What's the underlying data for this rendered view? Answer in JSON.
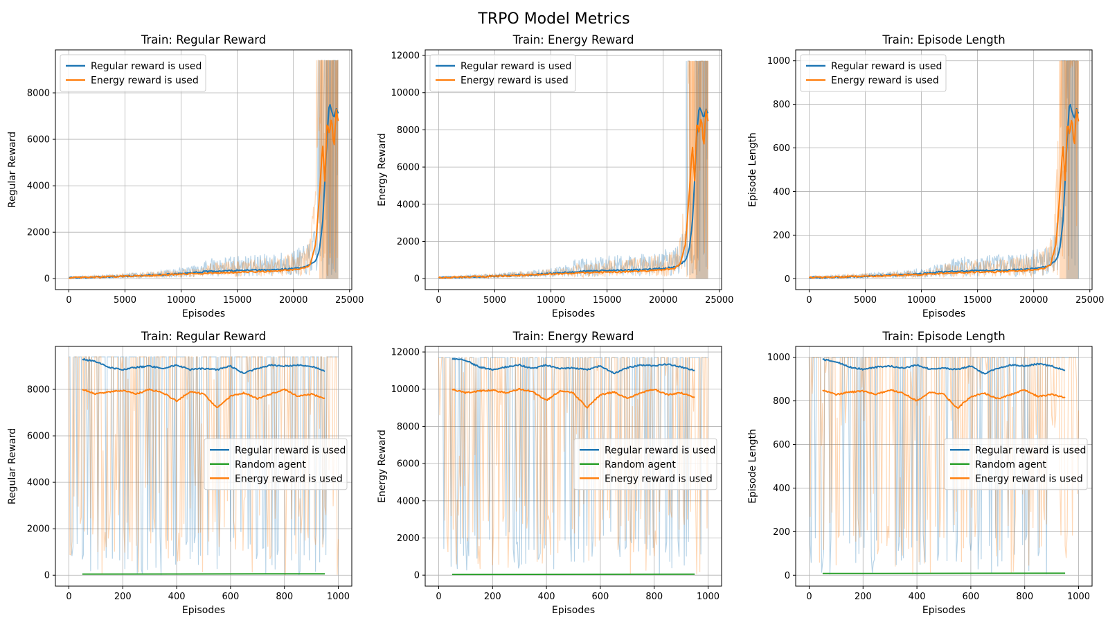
{
  "figure": {
    "title": "TRPO Model Metrics"
  },
  "colors": {
    "regular": "#1f77b4",
    "energy": "#ff7f0e",
    "random": "#2ca02c",
    "grid": "#b0b0b0"
  },
  "chart_data": [
    {
      "type": "line",
      "title": "Train: Regular Reward",
      "xlabel": "Episodes",
      "ylabel": "Regular Reward",
      "xlim": [
        -1200,
        25200
      ],
      "ylim": [
        -470,
        9850
      ],
      "xticks": [
        0,
        5000,
        10000,
        15000,
        20000,
        25000
      ],
      "yticks": [
        0,
        2000,
        4000,
        6000,
        8000
      ],
      "legend_position": "upper-left",
      "grid": true,
      "kind": "train",
      "ymax": 9400,
      "series": [
        {
          "name": "Regular reward is used",
          "key": "regular",
          "x": [
            0,
            2000,
            4000,
            6000,
            8000,
            10000,
            12000,
            14000,
            16000,
            18000,
            20000,
            21000,
            21500,
            22000,
            22300,
            22600,
            22800,
            23000,
            23200,
            23400,
            23600,
            23800,
            24000
          ],
          "values": [
            40,
            60,
            90,
            120,
            160,
            220,
            300,
            340,
            360,
            380,
            440,
            500,
            600,
            800,
            1200,
            2400,
            4200,
            6200,
            7600,
            7200,
            6900,
            7300,
            7100
          ]
        },
        {
          "name": "Energy reward is used",
          "key": "energy",
          "x": [
            0,
            2000,
            4000,
            6000,
            8000,
            10000,
            12000,
            14000,
            16000,
            18000,
            20000,
            21000,
            21500,
            22000,
            22300,
            22600,
            22800,
            23000,
            23200,
            23400,
            23600,
            23800,
            24000
          ],
          "values": [
            40,
            60,
            90,
            120,
            150,
            190,
            230,
            260,
            290,
            320,
            380,
            450,
            600,
            1500,
            3500,
            5800,
            4200,
            6800,
            6200,
            7000,
            5500,
            7300,
            6800
          ]
        }
      ]
    },
    {
      "type": "line",
      "title": "Train: Energy Reward",
      "xlabel": "Episodes",
      "ylabel": "Energy Reward",
      "xlim": [
        -1200,
        25200
      ],
      "ylim": [
        -590,
        12300
      ],
      "xticks": [
        0,
        5000,
        10000,
        15000,
        20000,
        25000
      ],
      "yticks": [
        0,
        2000,
        4000,
        6000,
        8000,
        10000,
        12000
      ],
      "legend_position": "upper-left",
      "grid": true,
      "kind": "train",
      "ymax": 11700,
      "series": [
        {
          "name": "Regular reward is used",
          "key": "regular",
          "x": [
            0,
            2000,
            4000,
            6000,
            8000,
            10000,
            12000,
            14000,
            16000,
            18000,
            20000,
            21000,
            21500,
            22000,
            22300,
            22600,
            22800,
            23000,
            23200,
            23400,
            23600,
            23800,
            24000
          ],
          "values": [
            50,
            80,
            110,
            150,
            200,
            270,
            370,
            420,
            450,
            470,
            550,
            620,
            750,
            1000,
            1500,
            3000,
            5300,
            7800,
            9300,
            9000,
            8600,
            9100,
            8900
          ]
        },
        {
          "name": "Energy reward is used",
          "key": "energy",
          "x": [
            0,
            2000,
            4000,
            6000,
            8000,
            10000,
            12000,
            14000,
            16000,
            18000,
            20000,
            21000,
            21500,
            22000,
            22300,
            22600,
            22800,
            23000,
            23200,
            23400,
            23600,
            23800,
            24000
          ],
          "values": [
            50,
            80,
            110,
            150,
            190,
            240,
            290,
            330,
            360,
            400,
            480,
            560,
            750,
            1900,
            4400,
            7200,
            5300,
            8500,
            7800,
            8800,
            6900,
            9100,
            8500
          ]
        }
      ]
    },
    {
      "type": "line",
      "title": "Train: Episode Length",
      "xlabel": "Episodes",
      "ylabel": "Episode Length",
      "xlim": [
        -1200,
        25200
      ],
      "ylim": [
        -50,
        1050
      ],
      "xticks": [
        0,
        5000,
        10000,
        15000,
        20000,
        25000
      ],
      "yticks": [
        0,
        200,
        400,
        600,
        800,
        1000
      ],
      "legend_position": "upper-left",
      "grid": true,
      "kind": "train",
      "ymax": 1000,
      "series": [
        {
          "name": "Regular reward is used",
          "key": "regular",
          "x": [
            0,
            2000,
            4000,
            6000,
            8000,
            10000,
            12000,
            14000,
            16000,
            18000,
            20000,
            21000,
            21500,
            22000,
            22300,
            22600,
            22800,
            23000,
            23200,
            23400,
            23600,
            23800,
            24000
          ],
          "values": [
            5,
            7,
            10,
            13,
            17,
            23,
            32,
            36,
            38,
            40,
            47,
            53,
            64,
            85,
            128,
            255,
            450,
            660,
            810,
            770,
            735,
            780,
            760
          ]
        },
        {
          "name": "Energy reward is used",
          "key": "energy",
          "x": [
            0,
            2000,
            4000,
            6000,
            8000,
            10000,
            12000,
            14000,
            16000,
            18000,
            20000,
            21000,
            21500,
            22000,
            22300,
            22600,
            22800,
            23000,
            23200,
            23400,
            23600,
            23800,
            24000
          ],
          "values": [
            5,
            7,
            10,
            13,
            16,
            20,
            25,
            28,
            31,
            34,
            40,
            48,
            64,
            160,
            370,
            620,
            450,
            720,
            660,
            750,
            590,
            780,
            720
          ]
        }
      ]
    },
    {
      "type": "line",
      "title": "Train: Regular Reward",
      "xlabel": "Episodes",
      "ylabel": "Regular Reward",
      "xlim": [
        -50,
        1050
      ],
      "ylim": [
        -470,
        9850
      ],
      "xticks": [
        0,
        200,
        400,
        600,
        800,
        1000
      ],
      "yticks": [
        0,
        2000,
        4000,
        6000,
        8000
      ],
      "legend_position": "center-right",
      "grid": true,
      "kind": "eval",
      "ymax": 9400,
      "series": [
        {
          "name": "Regular reward is used",
          "key": "regular",
          "x": [
            50,
            100,
            150,
            200,
            250,
            300,
            350,
            400,
            450,
            500,
            550,
            600,
            650,
            700,
            750,
            800,
            850,
            900,
            950
          ],
          "values": [
            9300,
            9200,
            8950,
            8850,
            8950,
            9000,
            8900,
            9050,
            8850,
            8900,
            8850,
            9000,
            8700,
            8900,
            9050,
            9000,
            9050,
            9000,
            8800
          ]
        },
        {
          "name": "Random agent",
          "key": "random",
          "x": [
            50,
            950
          ],
          "values": [
            50,
            60
          ]
        },
        {
          "name": "Energy reward is used",
          "key": "energy",
          "x": [
            50,
            100,
            150,
            200,
            250,
            300,
            350,
            400,
            450,
            500,
            550,
            600,
            650,
            700,
            750,
            800,
            850,
            900,
            950
          ],
          "values": [
            8000,
            7800,
            7900,
            7950,
            7800,
            8000,
            7850,
            7500,
            7900,
            7800,
            7200,
            7700,
            7850,
            7600,
            7800,
            8000,
            7700,
            7800,
            7600
          ]
        }
      ]
    },
    {
      "type": "line",
      "title": "Train: Energy Reward",
      "xlabel": "Episodes",
      "ylabel": "Energy Reward",
      "xlim": [
        -50,
        1050
      ],
      "ylim": [
        -590,
        12300
      ],
      "xticks": [
        0,
        200,
        400,
        600,
        800,
        1000
      ],
      "yticks": [
        0,
        2000,
        4000,
        6000,
        8000,
        10000,
        12000
      ],
      "legend_position": "center-right",
      "grid": true,
      "kind": "eval",
      "ymax": 11700,
      "series": [
        {
          "name": "Regular reward is used",
          "key": "regular",
          "x": [
            50,
            100,
            150,
            200,
            250,
            300,
            350,
            400,
            450,
            500,
            550,
            600,
            650,
            700,
            750,
            800,
            850,
            900,
            950
          ],
          "values": [
            11650,
            11550,
            11200,
            11050,
            11200,
            11300,
            11100,
            11300,
            11100,
            11150,
            11050,
            11250,
            10850,
            11150,
            11300,
            11250,
            11350,
            11200,
            11000
          ]
        },
        {
          "name": "Random agent",
          "key": "random",
          "x": [
            50,
            950
          ],
          "values": [
            40,
            50
          ]
        },
        {
          "name": "Energy reward is used",
          "key": "energy",
          "x": [
            50,
            100,
            150,
            200,
            250,
            300,
            350,
            400,
            450,
            500,
            550,
            600,
            650,
            700,
            750,
            800,
            850,
            900,
            950
          ],
          "values": [
            10000,
            9800,
            9900,
            9950,
            9800,
            10000,
            9850,
            9400,
            9900,
            9800,
            9000,
            9700,
            9850,
            9500,
            9800,
            10000,
            9700,
            9800,
            9550
          ]
        }
      ]
    },
    {
      "type": "line",
      "title": "Train: Episode Length",
      "xlabel": "Episodes",
      "ylabel": "Episode Length",
      "xlim": [
        -50,
        1050
      ],
      "ylim": [
        -50,
        1050
      ],
      "xticks": [
        0,
        200,
        400,
        600,
        800,
        1000
      ],
      "yticks": [
        0,
        200,
        400,
        600,
        800,
        1000
      ],
      "legend_position": "center-right",
      "grid": true,
      "kind": "eval",
      "ymax": 1000,
      "series": [
        {
          "name": "Regular reward is used",
          "key": "regular",
          "x": [
            50,
            100,
            150,
            200,
            250,
            300,
            350,
            400,
            450,
            500,
            550,
            600,
            650,
            700,
            750,
            800,
            850,
            900,
            950
          ],
          "values": [
            990,
            980,
            955,
            945,
            955,
            960,
            950,
            965,
            945,
            950,
            945,
            960,
            925,
            950,
            965,
            960,
            970,
            960,
            940
          ]
        },
        {
          "name": "Random agent",
          "key": "random",
          "x": [
            50,
            950
          ],
          "values": [
            8,
            9
          ]
        },
        {
          "name": "Energy reward is used",
          "key": "energy",
          "x": [
            50,
            100,
            150,
            200,
            250,
            300,
            350,
            400,
            450,
            500,
            550,
            600,
            650,
            700,
            750,
            800,
            850,
            900,
            950
          ],
          "values": [
            850,
            830,
            840,
            845,
            830,
            850,
            835,
            800,
            840,
            830,
            765,
            820,
            835,
            810,
            830,
            850,
            820,
            830,
            815
          ]
        }
      ]
    }
  ]
}
